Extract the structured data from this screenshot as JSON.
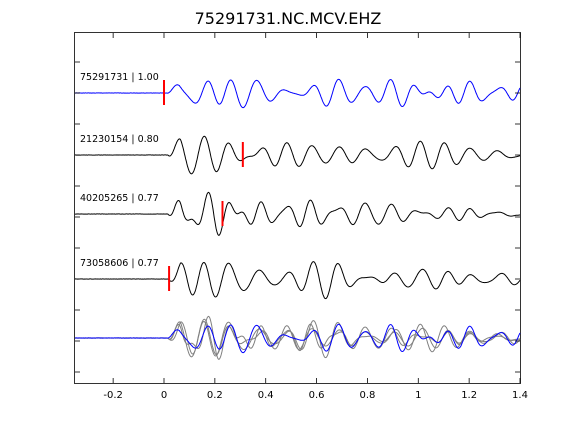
{
  "chart_data": {
    "type": "line",
    "title": "75291731.NC.MCV.EHZ",
    "xlabel": "",
    "ylabel": "",
    "xlim": [
      -0.35,
      1.4
    ],
    "x_ticks": [
      "-0.2",
      "0",
      "0.2",
      "0.4",
      "0.6",
      "0.8",
      "1",
      "1.2",
      "1.4"
    ],
    "x_tick_values": [
      -0.2,
      0,
      0.2,
      0.4,
      0.6,
      0.8,
      1.0,
      1.2,
      1.4
    ],
    "grid": false,
    "series": [
      {
        "name": "75291731 | 1.00",
        "label": "75291731 | 1.00",
        "color": "#0000ff",
        "pick": 0.0,
        "onset": 0.01,
        "peak_time": 0.09,
        "amp": 1.0,
        "decay": 2.2,
        "seed": 1
      },
      {
        "name": "21230154 | 0.80",
        "label": "21230154 | 0.80",
        "color": "#000000",
        "pick": 0.31,
        "onset": 0.015,
        "peak_time": 0.09,
        "amp": 1.0,
        "decay": 2.4,
        "seed": 2
      },
      {
        "name": "40205265 | 0.77",
        "label": "40205265 | 0.77",
        "color": "#000000",
        "pick": 0.23,
        "onset": 0.015,
        "peak_time": 0.09,
        "amp": 1.0,
        "decay": 2.6,
        "seed": 3
      },
      {
        "name": "73058606 | 0.77",
        "label": "73058606 | 0.77",
        "color": "#000000",
        "pick": 0.02,
        "onset": 0.015,
        "peak_time": 0.09,
        "amp": 1.0,
        "decay": 2.0,
        "seed": 4
      }
    ],
    "overlay": {
      "colors": [
        "#0000ff",
        "#808080",
        "#808080",
        "#808080"
      ]
    },
    "pick_color": "#ff0000"
  }
}
